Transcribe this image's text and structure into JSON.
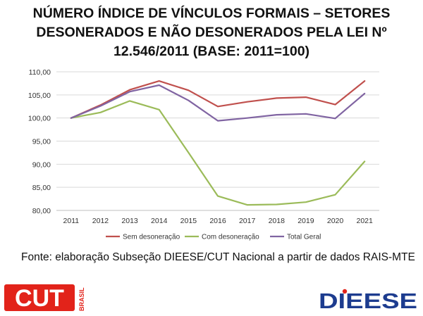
{
  "title_lines": [
    "NÚMERO ÍNDICE DE VÍNCULOS FORMAIS – SETORES",
    "DESONERADOS E NÃO DESONERADOS PELA LEI Nº",
    "12.546/2011 (BASE: 2011=100)"
  ],
  "chart_data": {
    "type": "line",
    "title": "",
    "xlabel": "",
    "ylabel": "",
    "x": [
      "2011",
      "2012",
      "2013",
      "2014",
      "2015",
      "2016",
      "2017",
      "2018",
      "2019",
      "2020",
      "2021"
    ],
    "ylim": [
      80,
      110
    ],
    "yticks": [
      "80,00",
      "85,00",
      "90,00",
      "95,00",
      "100,00",
      "105,00",
      "110,00"
    ],
    "grid": true,
    "legend": "bottom",
    "series": [
      {
        "name": "Sem desoneração",
        "color": "#c0504d",
        "values": [
          100.0,
          102.8,
          106.1,
          108.0,
          106.0,
          102.5,
          103.5,
          104.3,
          104.5,
          102.9,
          108.0
        ]
      },
      {
        "name": "Com desoneração",
        "color": "#9bbb59",
        "values": [
          100.0,
          101.2,
          103.7,
          101.8,
          92.5,
          83.1,
          81.2,
          81.3,
          81.8,
          83.4,
          90.6
        ]
      },
      {
        "name": "Total Geral",
        "color": "#8064a2",
        "values": [
          100.0,
          102.6,
          105.7,
          107.1,
          103.8,
          99.4,
          100.0,
          100.7,
          100.9,
          99.9,
          105.3
        ]
      }
    ]
  },
  "source_text": "Fonte: elaboração Subseção DIEESE/CUT Nacional a partir de dados RAIS-MTE",
  "logos": {
    "cut_main": "CUT",
    "cut_side": "BRASIL",
    "dieese": "DIEESE",
    "cut_color": "#e2231a",
    "dieese_color": "#1d3c8f"
  }
}
